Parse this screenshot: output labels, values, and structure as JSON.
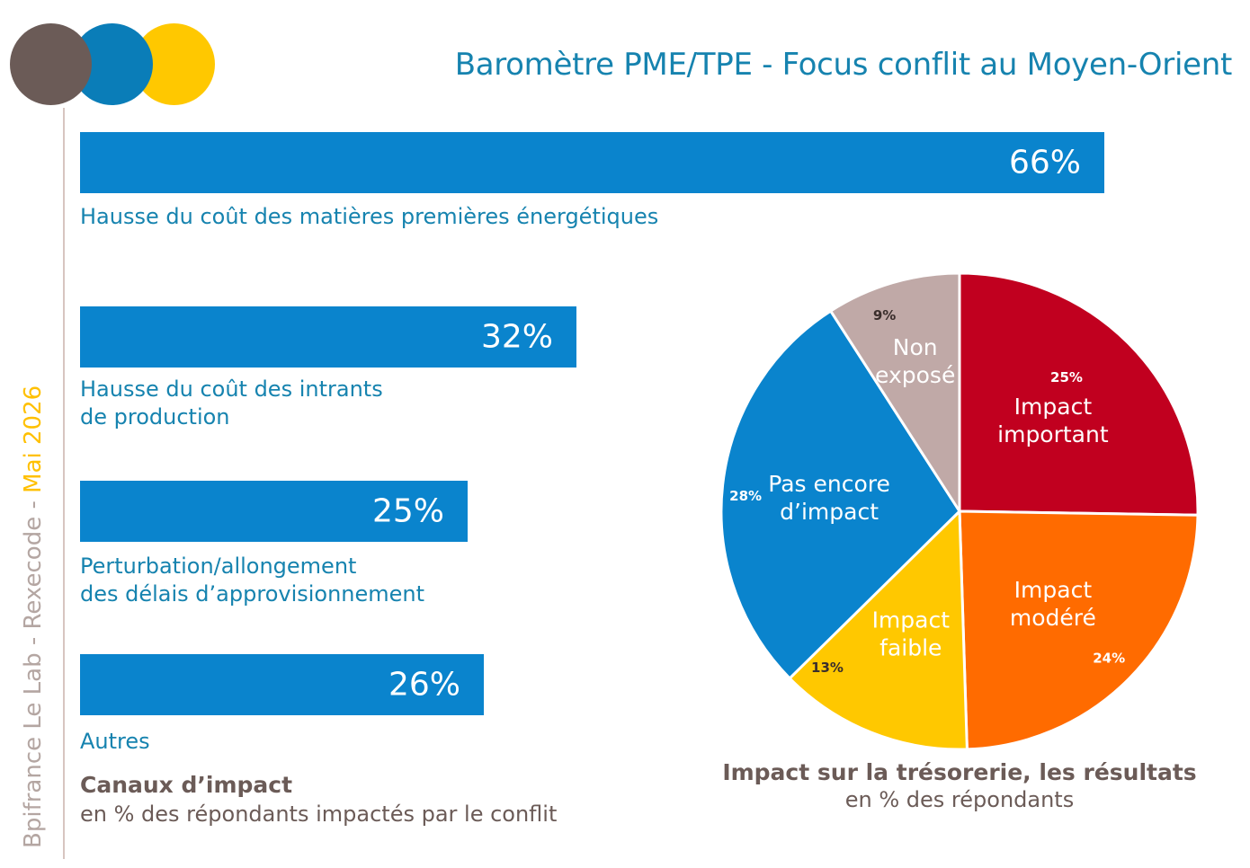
{
  "title": "Baromètre PME/TPE - Focus conflit au Moyen-Orient",
  "side_label": {
    "part1": "Bpifrance Le Lab - Rexecode - ",
    "part2": "Mai 2026"
  },
  "colors": {
    "title": "#1683AF",
    "bar": "#0A84CD",
    "logo_brown": "#6B5B57",
    "logo_blue": "#0A7DB8",
    "logo_yellow": "#FFC800"
  },
  "chart_data": [
    {
      "type": "bar",
      "orientation": "horizontal",
      "title": "Canaux d’impact",
      "subtitle": "en % des répondants impactés par le conflit",
      "categories": [
        [
          "Hausse du coût des matières premières énergétiques"
        ],
        [
          "Hausse du coût des intrants",
          "de production"
        ],
        [
          "Perturbation/allongement",
          "des délais d’approvisionnement"
        ],
        [
          "Autres"
        ]
      ],
      "values": [
        66,
        32,
        25,
        26
      ],
      "value_labels": [
        "66%",
        "32%",
        "25%",
        "26%"
      ],
      "unit": "%",
      "xlim": [
        0,
        66
      ]
    },
    {
      "type": "pie",
      "title": "Impact sur la trésorerie, les résultats",
      "subtitle": "en % des répondants",
      "slices": [
        {
          "label": [
            "Impact",
            "important"
          ],
          "value": 25,
          "value_label": "25%",
          "color": "#C1001F"
        },
        {
          "label": [
            "Impact",
            "modéré"
          ],
          "value": 24,
          "value_label": "24%",
          "color": "#FF6B00"
        },
        {
          "label": [
            "Impact",
            "faible"
          ],
          "value": 13,
          "value_label": "13%",
          "color": "#FFC800"
        },
        {
          "label": [
            "Pas encore",
            "d’impact"
          ],
          "value": 28,
          "value_label": "28%",
          "color": "#0A84CD"
        },
        {
          "label": [
            "Non",
            "exposé"
          ],
          "value": 9,
          "value_label": "9%",
          "color": "#C0A9A7"
        }
      ],
      "start": "12 o'clock",
      "direction": "clockwise"
    }
  ]
}
